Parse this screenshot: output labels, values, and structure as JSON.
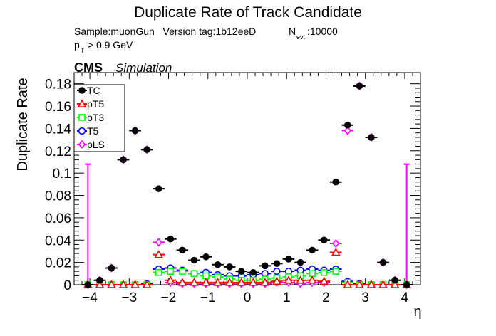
{
  "header": {
    "title": "Duplicate Rate of Track Candidate",
    "sample_line": "Sample:muonGun   Version tag:1b12eeD",
    "nevt_label": "N",
    "nevt_sub": "evt",
    "nevt_value": ":10000",
    "cut_p": "p",
    "cut_sub": "T",
    "cut_rest": " > 0.9 GeV",
    "experiment": "CMS",
    "simulation": "Simulation"
  },
  "chart_data": {
    "type": "scatter",
    "title": "Duplicate Rate of Track Candidate",
    "xlabel": "η",
    "ylabel": "Duplicate Rate",
    "xlim": [
      -4.4,
      4.4
    ],
    "ylim": [
      0,
      0.19
    ],
    "xticks": [
      -4,
      -3,
      -2,
      -1,
      0,
      1,
      2,
      3,
      4
    ],
    "xtick_labels": [
      "−4",
      "−3",
      "−2",
      "−1",
      "0",
      "1",
      "2",
      "3",
      "4"
    ],
    "yticks": [
      0,
      0.02,
      0.04,
      0.06,
      0.08,
      0.1,
      0.12,
      0.14,
      0.16,
      0.18
    ],
    "ytick_labels": [
      "0",
      "0.02",
      "0.04",
      "0.06",
      "0.08",
      "0.1",
      "0.12",
      "0.14",
      "0.16",
      "0.18"
    ],
    "legend_position": "top-left",
    "grid": false,
    "x": [
      -4.05,
      -3.75,
      -3.45,
      -3.15,
      -2.85,
      -2.55,
      -2.25,
      -1.95,
      -1.65,
      -1.35,
      -1.05,
      -0.75,
      -0.45,
      -0.15,
      0.15,
      0.45,
      0.75,
      1.05,
      1.35,
      1.65,
      1.95,
      2.25,
      2.55,
      2.85,
      3.15,
      3.45,
      3.75,
      4.05
    ],
    "x_halfwidth": 0.15,
    "series": [
      {
        "name": "TC",
        "color": "#000000",
        "marker": "filled-circle",
        "values": [
          0,
          0.004,
          0.015,
          0.112,
          0.138,
          0.121,
          0.086,
          0.041,
          0.031,
          0.022,
          0.025,
          0.018,
          0.016,
          0.012,
          0.011,
          0.017,
          0.019,
          0.023,
          0.02,
          0.031,
          0.04,
          0.092,
          0.143,
          0.178,
          0.132,
          0.02,
          0.004,
          0
        ]
      },
      {
        "name": "pT5",
        "color": "#ff0000",
        "marker": "open-triangle",
        "values": [
          0,
          0,
          0,
          0,
          0,
          0,
          0.027,
          0.004,
          0.002,
          0.002,
          0.002,
          0.002,
          0.002,
          0.002,
          0.002,
          0.002,
          0.003,
          0.004,
          0.004,
          0.004,
          0.003,
          0.029,
          0,
          0,
          0,
          0,
          0,
          0
        ]
      },
      {
        "name": "pT3",
        "color": "#00ff00",
        "marker": "open-square",
        "values": [
          0,
          0,
          0,
          0,
          0,
          0,
          0.011,
          0.012,
          0.012,
          0.01,
          0.008,
          0.007,
          0.005,
          0.004,
          0.004,
          0.005,
          0.006,
          0.007,
          0.008,
          0.01,
          0.011,
          0.012,
          0.002,
          0,
          0,
          0,
          0,
          0
        ]
      },
      {
        "name": "T5",
        "color": "#0000ff",
        "marker": "open-circle",
        "values": [
          0,
          0,
          0,
          0,
          0,
          0.001,
          0.014,
          0.015,
          0.013,
          0.01,
          0.011,
          0.009,
          0.008,
          0.008,
          0.009,
          0.01,
          0.012,
          0.012,
          0.013,
          0.014,
          0.013,
          0.014,
          0.003,
          0.001,
          0,
          0,
          0,
          0
        ]
      },
      {
        "name": "pLS",
        "color": "#ff00ff",
        "marker": "open-diamond",
        "values": [
          0,
          0.004,
          0.015,
          0.112,
          0.138,
          0.121,
          0.038,
          0.002,
          0.001,
          0.001,
          0.001,
          0.001,
          0.001,
          0.001,
          0.001,
          0.001,
          0.002,
          0.002,
          0.001,
          0.002,
          0.002,
          0.037,
          0.138,
          0.178,
          0.132,
          0.02,
          0.004,
          0
        ],
        "y_err_up": [
          0.108,
          0,
          0,
          0,
          0,
          0,
          0,
          0,
          0,
          0,
          0,
          0,
          0,
          0,
          0,
          0,
          0,
          0,
          0,
          0,
          0,
          0,
          0,
          0,
          0,
          0,
          0,
          0.108
        ]
      }
    ]
  }
}
